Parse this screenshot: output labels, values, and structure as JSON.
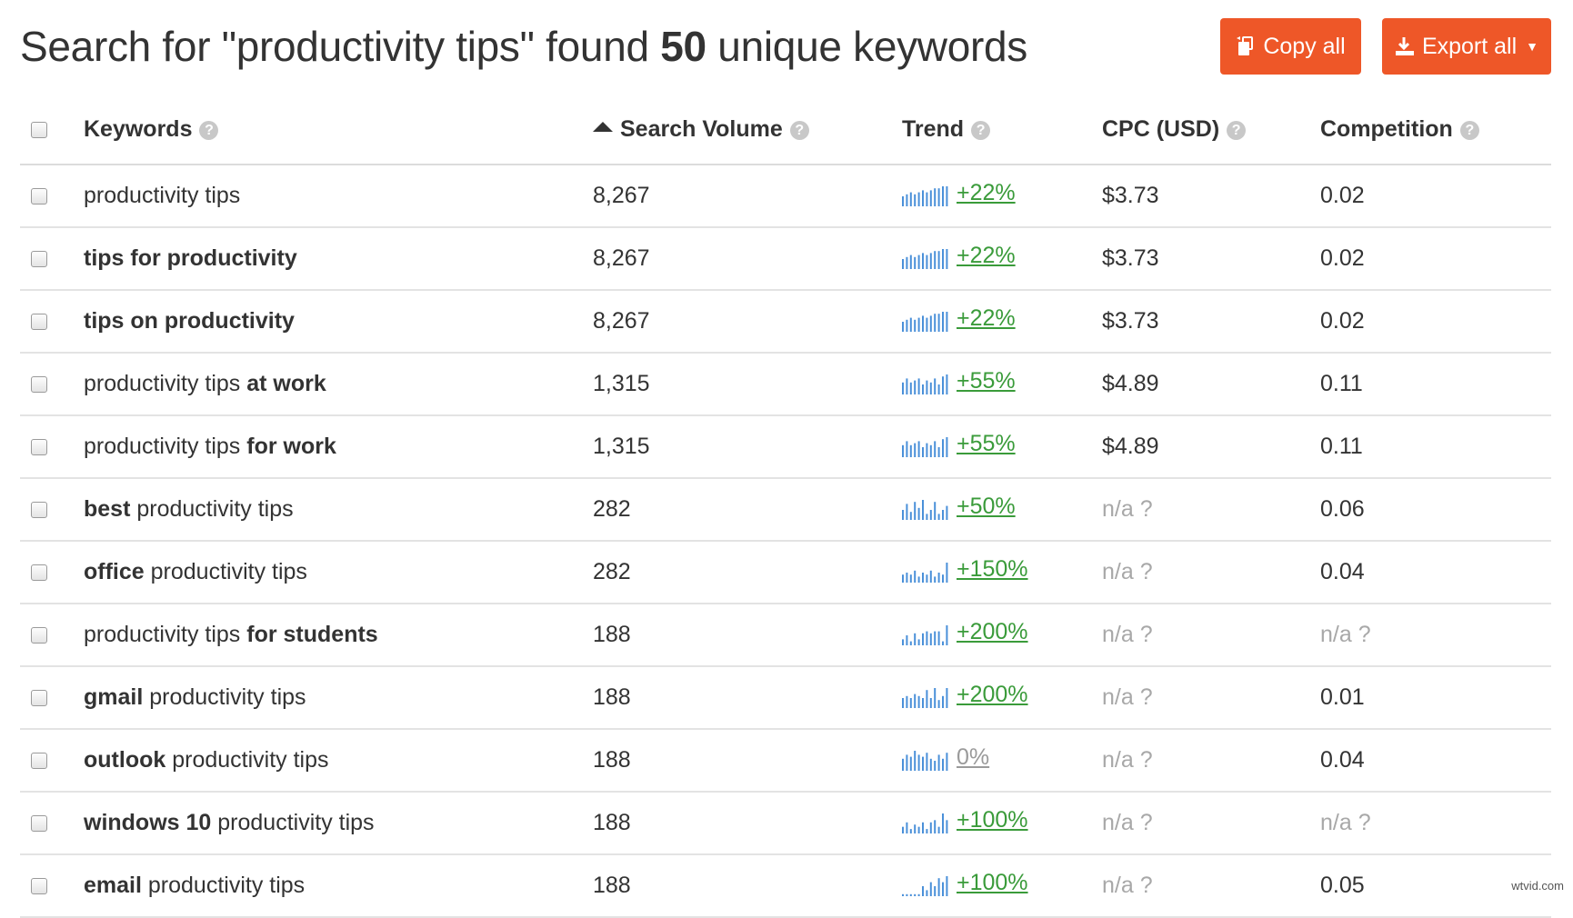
{
  "header": {
    "title_prefix": "Search for \"productivity tips\" found ",
    "title_count": "50",
    "title_suffix": " unique keywords",
    "copy_label": "Copy all",
    "export_label": "Export all"
  },
  "columns": {
    "keywords": "Keywords",
    "search_volume": "Search Volume",
    "trend": "Trend",
    "cpc": "CPC (USD)",
    "competition": "Competition",
    "help_glyph": "?"
  },
  "accent_color": "#ee5728",
  "trend_bar_color": "#4a90d9",
  "trend_up_color": "#3a9b3a",
  "rows": [
    {
      "keyword": [
        {
          "t": "productivity tips",
          "b": false
        }
      ],
      "volume": "8,267",
      "trend_pct": "+22%",
      "trend_bars": [
        5,
        6,
        7,
        6,
        7,
        8,
        7,
        8,
        9,
        9,
        10,
        10
      ],
      "cpc": "$3.73",
      "competition": "0.02"
    },
    {
      "keyword": [
        {
          "t": "tips for productivity",
          "b": true
        }
      ],
      "volume": "8,267",
      "trend_pct": "+22%",
      "trend_bars": [
        5,
        6,
        7,
        6,
        7,
        8,
        7,
        8,
        9,
        9,
        10,
        10
      ],
      "cpc": "$3.73",
      "competition": "0.02"
    },
    {
      "keyword": [
        {
          "t": "tips on productivity",
          "b": true
        }
      ],
      "volume": "8,267",
      "trend_pct": "+22%",
      "trend_bars": [
        5,
        6,
        7,
        6,
        7,
        8,
        7,
        8,
        9,
        9,
        10,
        10
      ],
      "cpc": "$3.73",
      "competition": "0.02"
    },
    {
      "keyword": [
        {
          "t": "productivity tips ",
          "b": false
        },
        {
          "t": "at work",
          "b": true
        }
      ],
      "volume": "1,315",
      "trend_pct": "+55%",
      "trend_bars": [
        6,
        8,
        6,
        7,
        8,
        5,
        7,
        6,
        8,
        5,
        9,
        10
      ],
      "cpc": "$4.89",
      "competition": "0.11"
    },
    {
      "keyword": [
        {
          "t": "productivity tips ",
          "b": false
        },
        {
          "t": "for work",
          "b": true
        }
      ],
      "volume": "1,315",
      "trend_pct": "+55%",
      "trend_bars": [
        6,
        8,
        6,
        7,
        8,
        5,
        7,
        6,
        8,
        5,
        9,
        10
      ],
      "cpc": "$4.89",
      "competition": "0.11"
    },
    {
      "keyword": [
        {
          "t": "best",
          "b": true
        },
        {
          "t": " productivity tips",
          "b": false
        }
      ],
      "volume": "282",
      "trend_pct": "+50%",
      "trend_bars": [
        5,
        8,
        4,
        9,
        6,
        10,
        3,
        5,
        9,
        3,
        5,
        7
      ],
      "cpc": "n/a ?",
      "competition": "0.06"
    },
    {
      "keyword": [
        {
          "t": "office",
          "b": true
        },
        {
          "t": " productivity tips",
          "b": false
        }
      ],
      "volume": "282",
      "trend_pct": "+150%",
      "trend_bars": [
        4,
        5,
        4,
        6,
        3,
        5,
        4,
        6,
        3,
        5,
        4,
        10
      ],
      "cpc": "n/a ?",
      "competition": "0.04"
    },
    {
      "keyword": [
        {
          "t": "productivity tips ",
          "b": false
        },
        {
          "t": "for students",
          "b": true
        }
      ],
      "volume": "188",
      "trend_pct": "+200%",
      "trend_bars": [
        3,
        5,
        2,
        6,
        3,
        6,
        7,
        6,
        7,
        7,
        2,
        10
      ],
      "cpc": "n/a ?",
      "competition": "n/a ?"
    },
    {
      "keyword": [
        {
          "t": "gmail",
          "b": true
        },
        {
          "t": " productivity tips",
          "b": false
        }
      ],
      "volume": "188",
      "trend_pct": "+200%",
      "trend_bars": [
        5,
        6,
        5,
        7,
        6,
        5,
        9,
        5,
        10,
        4,
        6,
        10
      ],
      "cpc": "n/a ?",
      "competition": "0.01"
    },
    {
      "keyword": [
        {
          "t": "outlook",
          "b": true
        },
        {
          "t": " productivity tips",
          "b": false
        }
      ],
      "volume": "188",
      "trend_pct": "0%",
      "trend_bars": [
        6,
        8,
        7,
        10,
        8,
        7,
        9,
        6,
        5,
        8,
        6,
        9
      ],
      "cpc": "n/a ?",
      "competition": "0.04"
    },
    {
      "keyword": [
        {
          "t": "windows 10",
          "b": true
        },
        {
          "t": " productivity tips",
          "b": false
        }
      ],
      "volume": "188",
      "trend_pct": "+100%",
      "trend_bars": [
        3,
        5,
        2,
        4,
        3,
        5,
        2,
        5,
        6,
        3,
        9,
        6
      ],
      "cpc": "n/a ?",
      "competition": "n/a ?"
    },
    {
      "keyword": [
        {
          "t": "email",
          "b": true
        },
        {
          "t": " productivity tips",
          "b": false
        }
      ],
      "volume": "188",
      "trend_pct": "+100%",
      "trend_bars": [
        1,
        1,
        1,
        1,
        1,
        5,
        3,
        7,
        5,
        9,
        7,
        10
      ],
      "cpc": "n/a ?",
      "competition": "0.05"
    }
  ],
  "watermark": "wtvid.com"
}
